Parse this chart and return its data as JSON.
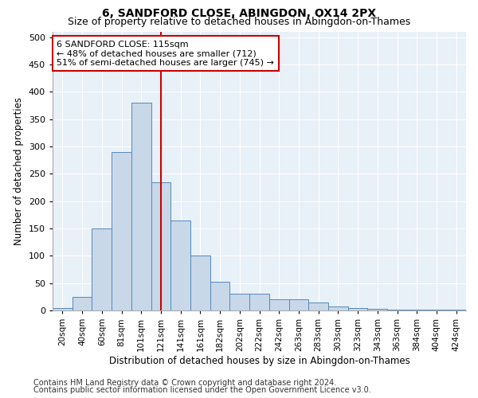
{
  "title1": "6, SANDFORD CLOSE, ABINGDON, OX14 2PX",
  "title2": "Size of property relative to detached houses in Abingdon-on-Thames",
  "xlabel": "Distribution of detached houses by size in Abingdon-on-Thames",
  "ylabel": "Number of detached properties",
  "footer1": "Contains HM Land Registry data © Crown copyright and database right 2024.",
  "footer2": "Contains public sector information licensed under the Open Government Licence v3.0.",
  "bar_labels": [
    "20sqm",
    "40sqm",
    "60sqm",
    "81sqm",
    "101sqm",
    "121sqm",
    "141sqm",
    "161sqm",
    "182sqm",
    "202sqm",
    "222sqm",
    "242sqm",
    "263sqm",
    "283sqm",
    "303sqm",
    "323sqm",
    "343sqm",
    "363sqm",
    "384sqm",
    "404sqm",
    "424sqm"
  ],
  "bar_values": [
    5,
    25,
    150,
    290,
    380,
    235,
    165,
    100,
    52,
    30,
    30,
    20,
    20,
    15,
    8,
    5,
    3,
    2,
    2,
    1,
    2
  ],
  "bar_color": "#c8d8e8",
  "bar_edge_color": "#5588bb",
  "vline_x": 5.0,
  "vline_color": "#cc0000",
  "annotation_text": "6 SANDFORD CLOSE: 115sqm\n← 48% of detached houses are smaller (712)\n51% of semi-detached houses are larger (745) →",
  "annotation_box_color": "#ffffff",
  "annotation_box_edge": "#cc0000",
  "ylim": [
    0,
    510
  ],
  "yticks": [
    0,
    50,
    100,
    150,
    200,
    250,
    300,
    350,
    400,
    450,
    500
  ],
  "bg_color": "#e8f0f8",
  "title1_fontsize": 10,
  "title2_fontsize": 9,
  "xlabel_fontsize": 8.5,
  "ylabel_fontsize": 8.5,
  "footer_fontsize": 7
}
